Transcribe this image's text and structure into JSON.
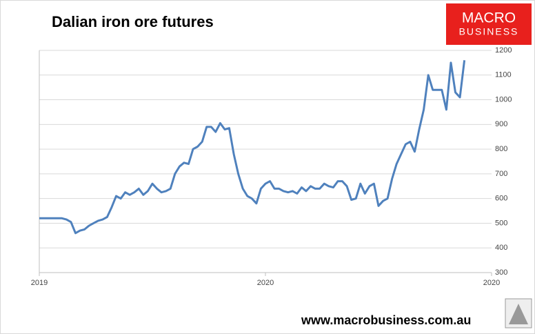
{
  "chart_data": {
    "type": "line",
    "title": "Dalian iron ore futures",
    "xlim": [
      0,
      100
    ],
    "xticks": [
      {
        "value": 0,
        "label": "2019"
      },
      {
        "value": 50,
        "label": "2020"
      },
      {
        "value": 100,
        "label": "2020"
      }
    ],
    "ylim": [
      300,
      1200
    ],
    "yticks": [
      300,
      400,
      500,
      600,
      700,
      800,
      900,
      1000,
      1100,
      1200
    ],
    "grid": true,
    "series": [
      {
        "color": "#4f81bd",
        "x": [
          0,
          1,
          2,
          3,
          4,
          5,
          6,
          7,
          8,
          9,
          10,
          11,
          12,
          13,
          14,
          15,
          16,
          17,
          18,
          19,
          20,
          21,
          22,
          23,
          24,
          25,
          26,
          27,
          28,
          29,
          30,
          31,
          32,
          33,
          34,
          35,
          36,
          37,
          38,
          39,
          40,
          41,
          42,
          43,
          44,
          45,
          46,
          47,
          48,
          49,
          50,
          51,
          52,
          53,
          54,
          55,
          56,
          57,
          58,
          59,
          60,
          61,
          62,
          63,
          64,
          65,
          66,
          67,
          68,
          69,
          70,
          71,
          72,
          73,
          74,
          75,
          76,
          77,
          78,
          79,
          80,
          81,
          82,
          83,
          84,
          85,
          86,
          87,
          88,
          89,
          90,
          91,
          92,
          93,
          94
        ],
        "values": [
          520,
          520,
          520,
          520,
          520,
          520,
          515,
          505,
          460,
          470,
          475,
          490,
          500,
          510,
          515,
          525,
          565,
          610,
          600,
          625,
          615,
          625,
          640,
          615,
          630,
          660,
          640,
          625,
          630,
          640,
          700,
          730,
          745,
          740,
          800,
          810,
          830,
          890,
          890,
          870,
          905,
          880,
          885,
          780,
          700,
          640,
          610,
          600,
          580,
          640,
          660,
          670,
          640,
          640,
          630,
          625,
          630,
          620,
          645,
          630,
          650,
          640,
          640,
          660,
          650,
          645,
          670,
          670,
          650,
          595,
          600,
          660,
          620,
          650,
          660,
          570,
          590,
          600,
          680,
          740,
          780,
          820,
          830,
          790,
          880,
          960,
          1100,
          1040,
          1040,
          1040,
          960,
          1150,
          1030,
          1010,
          1160
        ]
      }
    ]
  },
  "branding": {
    "logo_top": "MACRO",
    "logo_bottom": "BUSINESS",
    "url": "www.macrobusiness.com.au"
  }
}
